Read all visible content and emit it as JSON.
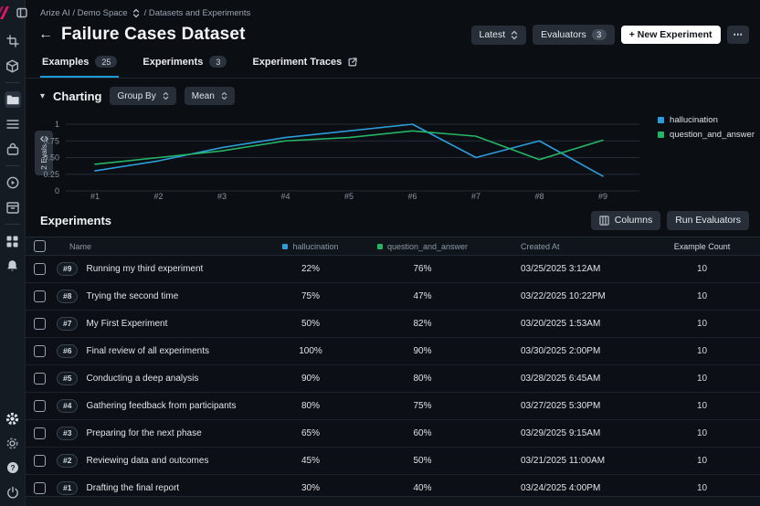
{
  "colors": {
    "accent_blue": "#2d9cdb",
    "accent_green": "#25b567",
    "brand_pink": "#e8156f",
    "tab_underline": "#1d9bd8"
  },
  "sidebar": {
    "icons": [
      "arize-logo",
      "panel-toggle",
      "trace-crop",
      "model-cube",
      "datasets-folder",
      "list",
      "lock-case",
      "play-circle",
      "archive-box",
      "apps-grid",
      "notifications-bell",
      "settings-gear-filled",
      "admin-gear",
      "help",
      "power"
    ]
  },
  "breadcrumb": {
    "space": "Arize AI / Demo Space",
    "section": "/ Datasets and Experiments"
  },
  "header": {
    "back": "←",
    "title": "Failure Cases Dataset",
    "latest_label": "Latest",
    "evaluators_label": "Evaluators",
    "evaluators_count": "3",
    "new_experiment_label": "+  New Experiment",
    "more_label": "⋯"
  },
  "tabs": [
    {
      "label": "Examples",
      "badge": "25",
      "active": true
    },
    {
      "label": "Experiments",
      "badge": "3",
      "active": false
    },
    {
      "label": "Experiment Traces",
      "external": true,
      "active": false
    }
  ],
  "charting": {
    "disclosure": "▾",
    "section_label": "Charting",
    "group_by_label": "Group By",
    "metric_label": "Mean",
    "evals_button": "2 Evals"
  },
  "chart_data": {
    "type": "line",
    "x": [
      "#1",
      "#2",
      "#3",
      "#4",
      "#5",
      "#6",
      "#7",
      "#8",
      "#9"
    ],
    "series": [
      {
        "name": "hallucination",
        "color": "#2d9cdb",
        "values": [
          0.3,
          0.45,
          0.65,
          0.8,
          0.9,
          1.0,
          0.5,
          0.75,
          0.22
        ]
      },
      {
        "name": "question_and_answer",
        "color": "#25b567",
        "values": [
          0.4,
          0.5,
          0.6,
          0.75,
          0.8,
          0.9,
          0.82,
          0.47,
          0.76
        ]
      }
    ],
    "ylim": [
      0,
      1
    ],
    "yticks": [
      0,
      0.25,
      0.5,
      0.75,
      1
    ],
    "ytick_labels": [
      "0",
      "0.25",
      "0.50",
      "0.75",
      "1"
    ],
    "grid": true,
    "legend_position": "right"
  },
  "experiments": {
    "section_label": "Experiments",
    "columns_button": "Columns",
    "run_evaluators_button": "Run Evaluators",
    "table": {
      "headers": [
        "Name",
        "hallucination",
        "question_and_answer",
        "Created At",
        "Example Count"
      ],
      "rows": [
        {
          "id": "#9",
          "name": "Running my third experiment",
          "hallucination": "22%",
          "qa": "76%",
          "created": "03/25/2025 3:12AM",
          "count": "10"
        },
        {
          "id": "#8",
          "name": "Trying the second time",
          "hallucination": "75%",
          "qa": "47%",
          "created": "03/22/2025 10:22PM",
          "count": "10"
        },
        {
          "id": "#7",
          "name": "My First Experiment",
          "hallucination": "50%",
          "qa": "82%",
          "created": "03/20/2025 1:53AM",
          "count": "10"
        },
        {
          "id": "#6",
          "name": "Final review of all experiments",
          "hallucination": "100%",
          "qa": "90%",
          "created": "03/30/2025 2:00PM",
          "count": "10"
        },
        {
          "id": "#5",
          "name": "Conducting a deep analysis",
          "hallucination": "90%",
          "qa": "80%",
          "created": "03/28/2025 6:45AM",
          "count": "10"
        },
        {
          "id": "#4",
          "name": "Gathering feedback from participants",
          "hallucination": "80%",
          "qa": "75%",
          "created": "03/27/2025 5:30PM",
          "count": "10"
        },
        {
          "id": "#3",
          "name": "Preparing for the next phase",
          "hallucination": "65%",
          "qa": "60%",
          "created": "03/29/2025 9:15AM",
          "count": "10"
        },
        {
          "id": "#2",
          "name": "Reviewing data and outcomes",
          "hallucination": "45%",
          "qa": "50%",
          "created": "03/21/2025 11:00AM",
          "count": "10"
        },
        {
          "id": "#1",
          "name": "Drafting the final report",
          "hallucination": "30%",
          "qa": "40%",
          "created": "03/24/2025 4:00PM",
          "count": "10"
        }
      ]
    }
  }
}
